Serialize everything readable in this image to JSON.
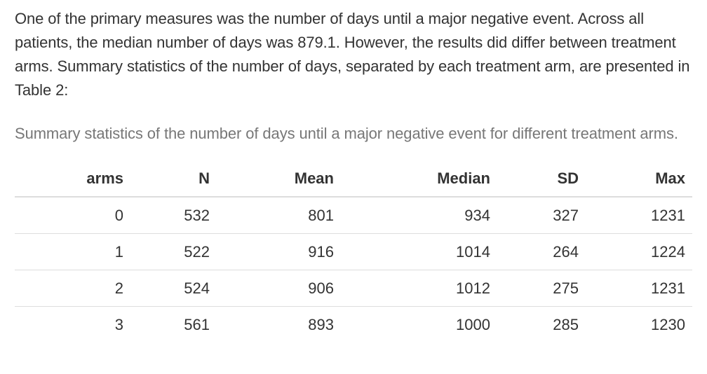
{
  "document": {
    "intro": "One of the primary measures was the number of days until a major negative event. Across all patients, the median number of days was 879.1. However, the results did differ between treatment arms. Summary statistics of the number of days, separated by each treatment arm, are presented in Table 2:",
    "caption": "Summary statistics of the number of days until a major negative event for different treatment arms."
  },
  "table": {
    "headers": [
      "arms",
      "N",
      "Mean",
      "Median",
      "SD",
      "Max"
    ],
    "rows": [
      [
        "0",
        "532",
        "801",
        "934",
        "327",
        "1231"
      ],
      [
        "1",
        "522",
        "916",
        "1014",
        "264",
        "1224"
      ],
      [
        "2",
        "524",
        "906",
        "1012",
        "275",
        "1231"
      ],
      [
        "3",
        "561",
        "893",
        "1000",
        "285",
        "1230"
      ]
    ]
  }
}
